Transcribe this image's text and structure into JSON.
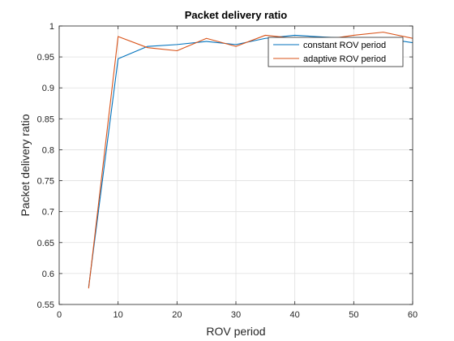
{
  "chart_data": {
    "type": "line",
    "title": "Packet delivery ratio",
    "xlabel": "ROV period",
    "ylabel": "Packet delivery ratio",
    "xlim": [
      0,
      60
    ],
    "ylim": [
      0.55,
      1
    ],
    "xticks": [
      0,
      10,
      20,
      30,
      40,
      50,
      60
    ],
    "xtick_labels": [
      "0",
      "10",
      "20",
      "30",
      "40",
      "50",
      "60"
    ],
    "yticks": [
      0.55,
      0.6,
      0.65,
      0.7,
      0.75,
      0.8,
      0.85,
      0.9,
      0.95,
      1
    ],
    "ytick_labels": [
      "0.55",
      "0.6",
      "0.65",
      "0.7",
      "0.75",
      "0.8",
      "0.85",
      "0.9",
      "0.95",
      "1"
    ],
    "grid": true,
    "legend_position": "top-right",
    "series": [
      {
        "name": "constant ROV period",
        "color": "#0072BD",
        "x": [
          5,
          10,
          15,
          20,
          25,
          30,
          35,
          40,
          45,
          50,
          55,
          60
        ],
        "y": [
          0.578,
          0.947,
          0.967,
          0.97,
          0.975,
          0.97,
          0.98,
          0.985,
          0.982,
          0.98,
          0.98,
          0.973
        ]
      },
      {
        "name": "adaptive ROV period",
        "color": "#D95319",
        "x": [
          5,
          10,
          15,
          20,
          25,
          30,
          35,
          40,
          45,
          50,
          55,
          60
        ],
        "y": [
          0.576,
          0.983,
          0.965,
          0.96,
          0.98,
          0.967,
          0.985,
          0.98,
          0.978,
          0.985,
          0.99,
          0.98
        ]
      }
    ]
  }
}
